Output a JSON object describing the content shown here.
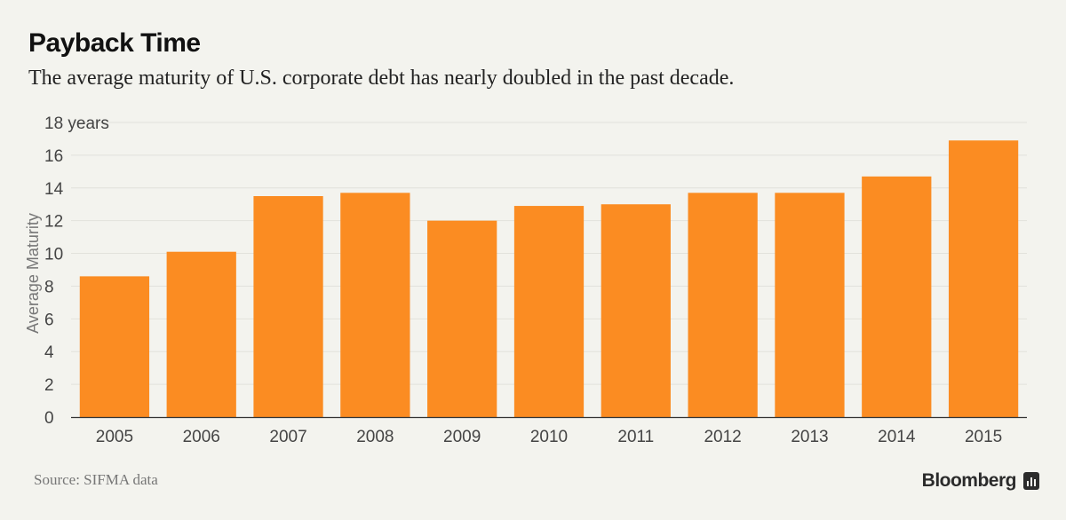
{
  "title": "Payback Time",
  "subtitle": "The average maturity of U.S. corporate debt has nearly doubled in the past decade.",
  "source": "Source: SIFMA data",
  "brand": "Bloomberg",
  "colors": {
    "bar": "#fb8c22",
    "grid": "#e2e2dc",
    "axis": "#333333",
    "tick_text": "#444444",
    "label_text": "#777777"
  },
  "chart_data": {
    "type": "bar",
    "categories": [
      "2005",
      "2006",
      "2007",
      "2008",
      "2009",
      "2010",
      "2011",
      "2012",
      "2013",
      "2014",
      "2015"
    ],
    "values": [
      8.6,
      10.1,
      13.5,
      13.7,
      12.0,
      12.9,
      13.0,
      13.7,
      13.7,
      14.7,
      16.9
    ],
    "ylabel": "Average Maturity",
    "ylim": [
      0,
      18
    ],
    "yticks": [
      {
        "value": 0,
        "label": "0"
      },
      {
        "value": 2,
        "label": "2"
      },
      {
        "value": 4,
        "label": "4"
      },
      {
        "value": 6,
        "label": "6"
      },
      {
        "value": 8,
        "label": "8"
      },
      {
        "value": 10,
        "label": "10"
      },
      {
        "value": 12,
        "label": "12"
      },
      {
        "value": 14,
        "label": "14"
      },
      {
        "value": 16,
        "label": "16"
      },
      {
        "value": 18,
        "label": "18 years"
      }
    ],
    "grid": true
  }
}
